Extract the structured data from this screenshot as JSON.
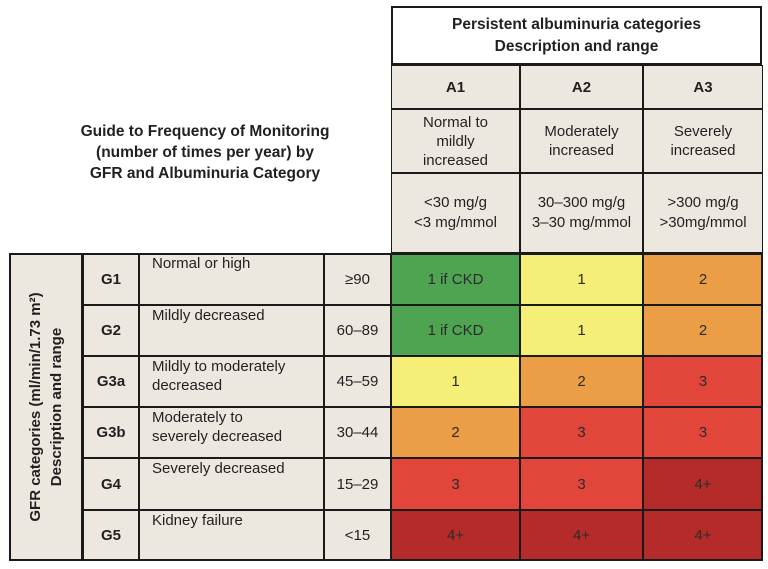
{
  "guide_title": [
    "Guide to Frequency of Monitoring",
    "(number of times per year) by",
    "GFR and Albuminuria Category"
  ],
  "albuminuria_header": [
    "Persistent albuminuria categories",
    "Description  and range"
  ],
  "albuminuria_categories": [
    {
      "code": "A1",
      "description": [
        "Normal to",
        "mildly",
        "increased"
      ],
      "range": [
        "<30 mg/g",
        "<3 mg/mmol"
      ]
    },
    {
      "code": "A2",
      "description": [
        "Moderately",
        "increased"
      ],
      "range": [
        "30–300 mg/g",
        "3–30 mg/mmol"
      ]
    },
    {
      "code": "A3",
      "description": [
        "Severely",
        "increased"
      ],
      "range": [
        ">300 mg/g",
        ">30mg/mmol"
      ]
    }
  ],
  "gfr_side_label": [
    "GFR categories (ml/min/1.73 m²)",
    "Description and range"
  ],
  "gfr_categories": [
    {
      "code": "G1",
      "description": [
        "Normal or high"
      ],
      "range": "≥90"
    },
    {
      "code": "G2",
      "description": [
        "Mildly decreased"
      ],
      "range": "60–89"
    },
    {
      "code": "G3a",
      "description": [
        "Mildly to moderately",
        "decreased"
      ],
      "range": "45–59"
    },
    {
      "code": "G3b",
      "description": [
        "Moderately to",
        "severely decreased"
      ],
      "range": "30–44"
    },
    {
      "code": "G4",
      "description": [
        "Severely decreased"
      ],
      "range": "15–29"
    },
    {
      "code": "G5",
      "description": [
        "Kidney failure"
      ],
      "range": "<15"
    }
  ],
  "frequency_grid": [
    [
      "1 if CKD",
      "1",
      "2"
    ],
    [
      "1 if CKD",
      "1",
      "2"
    ],
    [
      "1",
      "2",
      "3"
    ],
    [
      "2",
      "3",
      "3"
    ],
    [
      "3",
      "3",
      "4+"
    ],
    [
      "4+",
      "4+",
      "4+"
    ]
  ],
  "colors": {
    "green": "#4fa452",
    "yellow": "#f5ef77",
    "orange": "#eb9e45",
    "red": "#e2463b",
    "dark_red": "#b42b2a",
    "beige": "#ede8df"
  },
  "grid_colors": [
    [
      "green",
      "yellow",
      "orange"
    ],
    [
      "green",
      "yellow",
      "orange"
    ],
    [
      "yellow",
      "orange",
      "red"
    ],
    [
      "orange",
      "red",
      "red"
    ],
    [
      "red",
      "red",
      "dark_red"
    ],
    [
      "dark_red",
      "dark_red",
      "dark_red"
    ]
  ]
}
